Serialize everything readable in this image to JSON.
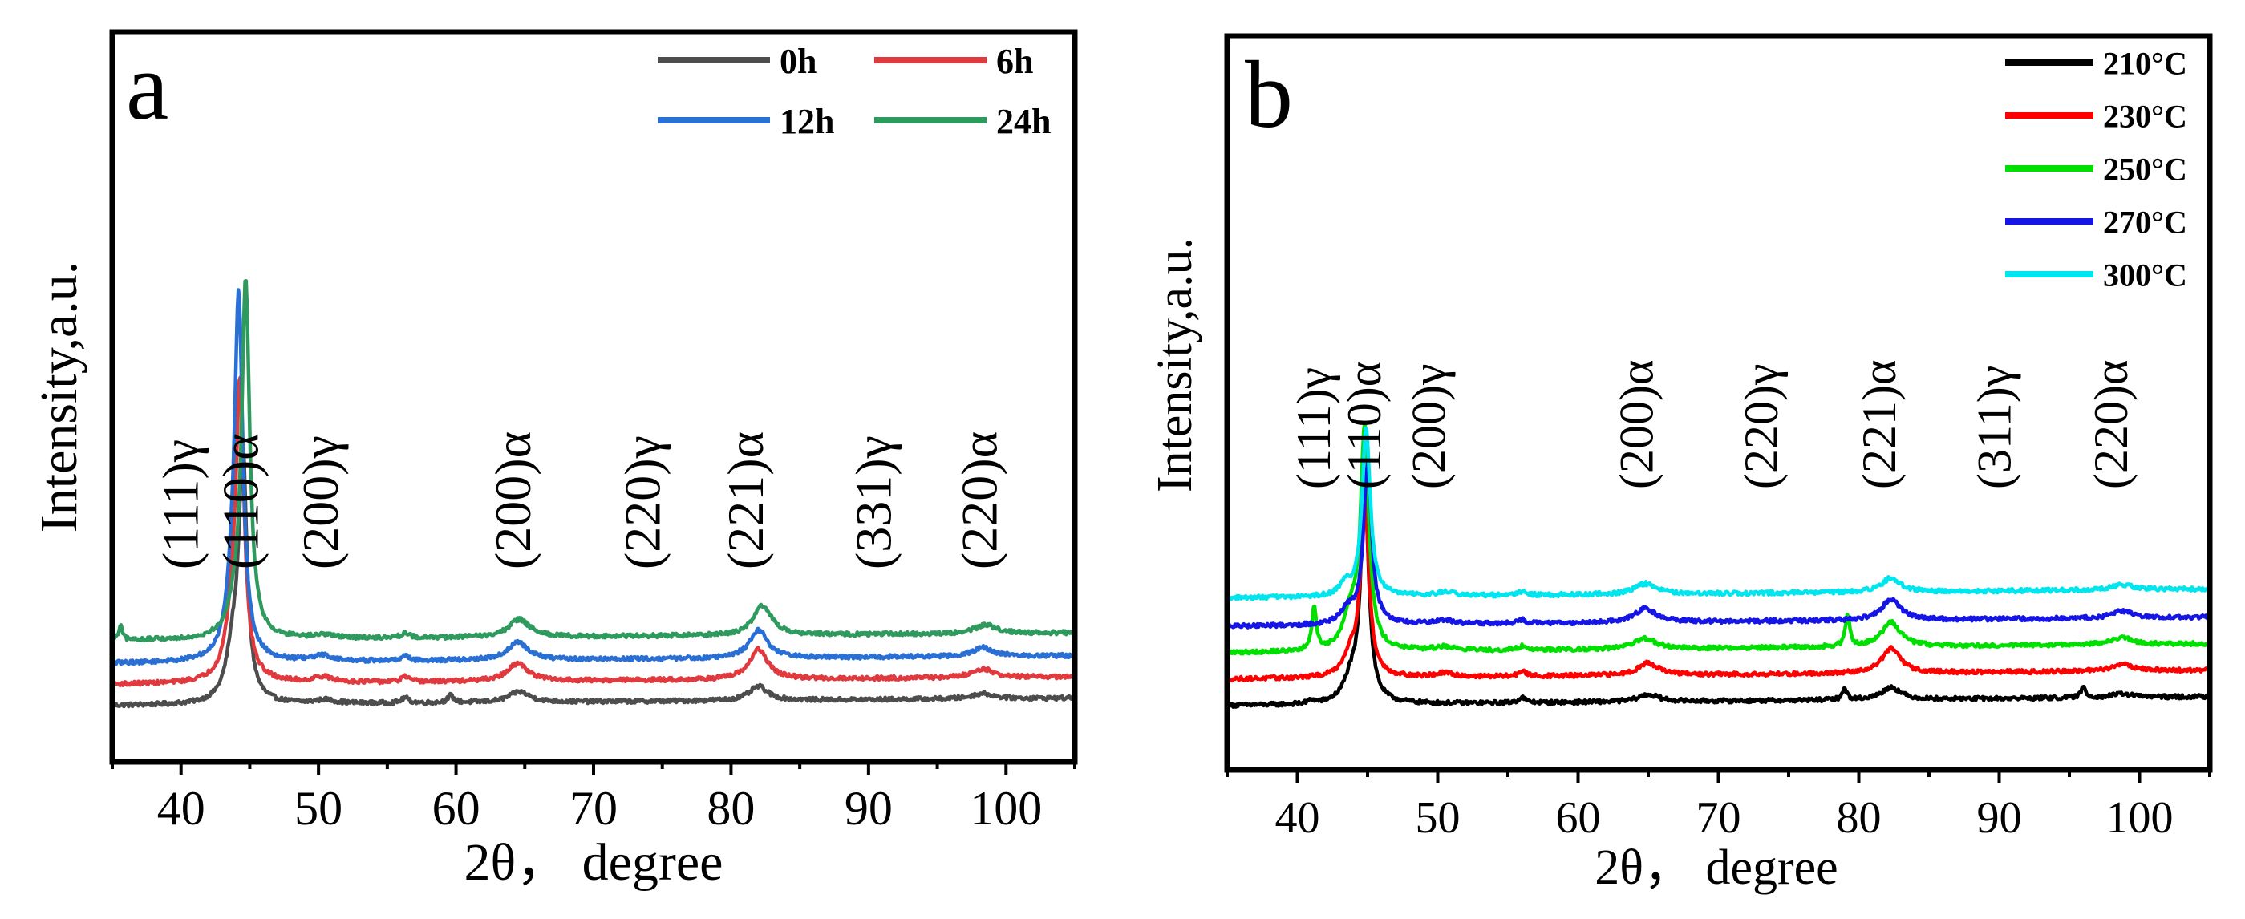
{
  "chart_data": [
    {
      "panel": "a",
      "type": "line",
      "title": "",
      "xlabel": "2θ， degree",
      "ylabel": "Intensity,a.u.",
      "xlim": [
        35,
        105
      ],
      "xticks": [
        "40",
        "50",
        "60",
        "70",
        "80",
        "90",
        "100"
      ],
      "legend": "top-right",
      "series": [
        {
          "name": "0h",
          "color": "#4d4d4d",
          "baseline": 0.0,
          "peaks": [
            [
              43.8,
              0.28,
              0.6
            ],
            [
              44.5,
              1.35,
              0.35
            ],
            [
              50.5,
              0.02,
              0.8
            ],
            [
              56.3,
              0.03,
              0.3
            ],
            [
              59.6,
              0.04,
              0.25
            ],
            [
              64.6,
              0.06,
              0.9
            ],
            [
              82.0,
              0.08,
              0.8
            ],
            [
              98.3,
              0.03,
              0.9
            ]
          ]
        },
        {
          "name": "6h",
          "color": "#e0393e",
          "baseline": 0.12,
          "peaks": [
            [
              43.8,
              0.32,
              0.6
            ],
            [
              44.3,
              1.55,
              0.35
            ],
            [
              50.3,
              0.03,
              0.8
            ],
            [
              56.3,
              0.03,
              0.3
            ],
            [
              64.5,
              0.1,
              0.9
            ],
            [
              82.0,
              0.17,
              0.8
            ],
            [
              98.3,
              0.05,
              0.9
            ]
          ]
        },
        {
          "name": "12h",
          "color": "#2a6fd4",
          "baseline": 0.24,
          "peaks": [
            [
              43.8,
              0.3,
              0.6
            ],
            [
              44.2,
              1.9,
              0.35
            ],
            [
              50.3,
              0.03,
              0.8
            ],
            [
              56.3,
              0.03,
              0.3
            ],
            [
              64.5,
              0.1,
              0.9
            ],
            [
              82.0,
              0.16,
              0.8
            ],
            [
              98.3,
              0.05,
              0.9
            ]
          ]
        },
        {
          "name": "24h",
          "color": "#2f9a5e",
          "baseline": 0.37,
          "peaks": [
            [
              35.6,
              0.08,
              0.15
            ],
            [
              43.9,
              0.12,
              0.6
            ],
            [
              44.7,
              2.0,
              0.35
            ],
            [
              50.5,
              0.02,
              0.8
            ],
            [
              56.3,
              0.03,
              0.3
            ],
            [
              64.6,
              0.1,
              0.9
            ],
            [
              82.3,
              0.17,
              0.8
            ],
            [
              98.5,
              0.05,
              0.9
            ]
          ]
        }
      ],
      "annotations": [
        {
          "text": "(111)γ",
          "x": 41.2
        },
        {
          "text": "(110)α",
          "x": 45.6
        },
        {
          "text": "(200)γ",
          "x": 51.4
        },
        {
          "text": "(200)α",
          "x": 65.4
        },
        {
          "text": "(220)γ",
          "x": 74.8
        },
        {
          "text": "(221)α",
          "x": 82.3
        },
        {
          "text": "(331)γ",
          "x": 91.6
        },
        {
          "text": "(220)α",
          "x": 99.3
        }
      ]
    },
    {
      "panel": "b",
      "type": "line",
      "title": "",
      "xlabel": "2θ， degree",
      "ylabel": "Intensity,a.u.",
      "xlim": [
        35,
        105
      ],
      "xticks": [
        "40",
        "50",
        "60",
        "70",
        "80",
        "90",
        "100"
      ],
      "legend": "top-right",
      "series": [
        {
          "name": "210°C",
          "color": "#000000",
          "baseline": 0.0,
          "peaks": [
            [
              41.0,
              0.02,
              0.2
            ],
            [
              43.8,
              0.12,
              0.6
            ],
            [
              44.8,
              1.2,
              0.35
            ],
            [
              56.0,
              0.03,
              0.3
            ],
            [
              65.0,
              0.04,
              0.9
            ],
            [
              79.0,
              0.06,
              0.2
            ],
            [
              82.3,
              0.07,
              0.8
            ],
            [
              96.0,
              0.06,
              0.2
            ],
            [
              98.8,
              0.02,
              0.9
            ]
          ]
        },
        {
          "name": "230°C",
          "color": "#ff0000",
          "baseline": 0.15,
          "peaks": [
            [
              43.8,
              0.12,
              0.6
            ],
            [
              44.8,
              1.0,
              0.35
            ],
            [
              50.5,
              0.02,
              0.8
            ],
            [
              56.0,
              0.03,
              0.3
            ],
            [
              65.0,
              0.07,
              0.9
            ],
            [
              82.3,
              0.14,
              0.8
            ],
            [
              98.8,
              0.04,
              0.9
            ]
          ]
        },
        {
          "name": "250°C",
          "color": "#00e000",
          "baseline": 0.3,
          "peaks": [
            [
              41.2,
              0.25,
              0.18
            ],
            [
              43.8,
              0.2,
              0.6
            ],
            [
              44.8,
              1.25,
              0.35
            ],
            [
              50.5,
              0.02,
              0.8
            ],
            [
              56.0,
              0.02,
              0.3
            ],
            [
              64.8,
              0.06,
              0.9
            ],
            [
              79.2,
              0.18,
              0.18
            ],
            [
              82.3,
              0.14,
              0.8
            ],
            [
              98.8,
              0.04,
              0.9
            ]
          ]
        },
        {
          "name": "270°C",
          "color": "#1515e6",
          "baseline": 0.45,
          "peaks": [
            [
              43.6,
              0.08,
              0.6
            ],
            [
              45.0,
              0.9,
              0.35
            ],
            [
              50.5,
              0.02,
              0.8
            ],
            [
              56.0,
              0.02,
              0.3
            ],
            [
              64.8,
              0.08,
              0.9
            ],
            [
              82.3,
              0.12,
              0.8
            ],
            [
              98.8,
              0.04,
              0.9
            ]
          ]
        },
        {
          "name": "300°C",
          "color": "#00e5ee",
          "baseline": 0.61,
          "peaks": [
            [
              43.4,
              0.07,
              0.4
            ],
            [
              44.9,
              0.95,
              0.35
            ],
            [
              50.5,
              0.02,
              0.8
            ],
            [
              56.0,
              0.02,
              0.3
            ],
            [
              64.8,
              0.06,
              0.9
            ],
            [
              82.3,
              0.08,
              0.8
            ],
            [
              98.8,
              0.03,
              0.9
            ]
          ]
        }
      ],
      "annotations": [
        {
          "text": "(111)γ",
          "x": 42.3
        },
        {
          "text": "(110)α",
          "x": 45.9
        },
        {
          "text": "(200)γ",
          "x": 50.5
        },
        {
          "text": "(200)α",
          "x": 65.3
        },
        {
          "text": "(220)γ",
          "x": 74.2
        },
        {
          "text": "(221)α",
          "x": 82.6
        },
        {
          "text": "(311)γ",
          "x": 90.8
        },
        {
          "text": "(220)α",
          "x": 99.1
        }
      ]
    }
  ]
}
